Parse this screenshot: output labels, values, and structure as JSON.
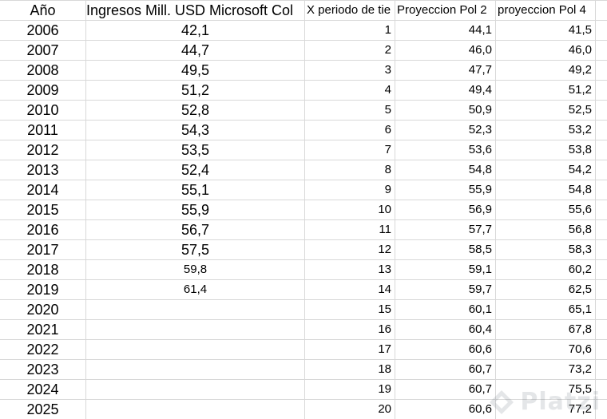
{
  "headers": {
    "year": "Año",
    "income": "Ingresos Mill. USD Microsoft Col",
    "period": "X periodo de tie",
    "proj2": "Proyeccion Pol 2",
    "proj4": "proyeccion Pol 4"
  },
  "rows": [
    {
      "year": "2006",
      "income": "42,1",
      "period": "1",
      "proj2": "44,1",
      "proj4": "41,5"
    },
    {
      "year": "2007",
      "income": "44,7",
      "period": "2",
      "proj2": "46,0",
      "proj4": "46,0"
    },
    {
      "year": "2008",
      "income": "49,5",
      "period": "3",
      "proj2": "47,7",
      "proj4": "49,2"
    },
    {
      "year": "2009",
      "income": "51,2",
      "period": "4",
      "proj2": "49,4",
      "proj4": "51,2"
    },
    {
      "year": "2010",
      "income": "52,8",
      "period": "5",
      "proj2": "50,9",
      "proj4": "52,5"
    },
    {
      "year": "2011",
      "income": "54,3",
      "period": "6",
      "proj2": "52,3",
      "proj4": "53,2"
    },
    {
      "year": "2012",
      "income": "53,5",
      "period": "7",
      "proj2": "53,6",
      "proj4": "53,8"
    },
    {
      "year": "2013",
      "income": "52,4",
      "period": "8",
      "proj2": "54,8",
      "proj4": "54,2"
    },
    {
      "year": "2014",
      "income": "55,1",
      "period": "9",
      "proj2": "55,9",
      "proj4": "54,8"
    },
    {
      "year": "2015",
      "income": "55,9",
      "period": "10",
      "proj2": "56,9",
      "proj4": "55,6"
    },
    {
      "year": "2016",
      "income": "56,7",
      "period": "11",
      "proj2": "57,7",
      "proj4": "56,8"
    },
    {
      "year": "2017",
      "income": "57,5",
      "period": "12",
      "proj2": "58,5",
      "proj4": "58,3"
    },
    {
      "year": "2018",
      "income": "59,8",
      "period": "13",
      "proj2": "59,1",
      "proj4": "60,2"
    },
    {
      "year": "2019",
      "income": "61,4",
      "period": "14",
      "proj2": "59,7",
      "proj4": "62,5"
    },
    {
      "year": "2020",
      "income": "",
      "period": "15",
      "proj2": "60,1",
      "proj4": "65,1"
    },
    {
      "year": "2021",
      "income": "",
      "period": "16",
      "proj2": "60,4",
      "proj4": "67,8"
    },
    {
      "year": "2022",
      "income": "",
      "period": "17",
      "proj2": "60,6",
      "proj4": "70,6"
    },
    {
      "year": "2023",
      "income": "",
      "period": "18",
      "proj2": "60,7",
      "proj4": "73,2"
    },
    {
      "year": "2024",
      "income": "",
      "period": "19",
      "proj2": "60,7",
      "proj4": "75,5"
    },
    {
      "year": "2025",
      "income": "",
      "period": "20",
      "proj2": "60,6",
      "proj4": "77,2"
    }
  ],
  "watermark": {
    "text": "Platzi",
    "icon": "platzi-logo-icon"
  }
}
